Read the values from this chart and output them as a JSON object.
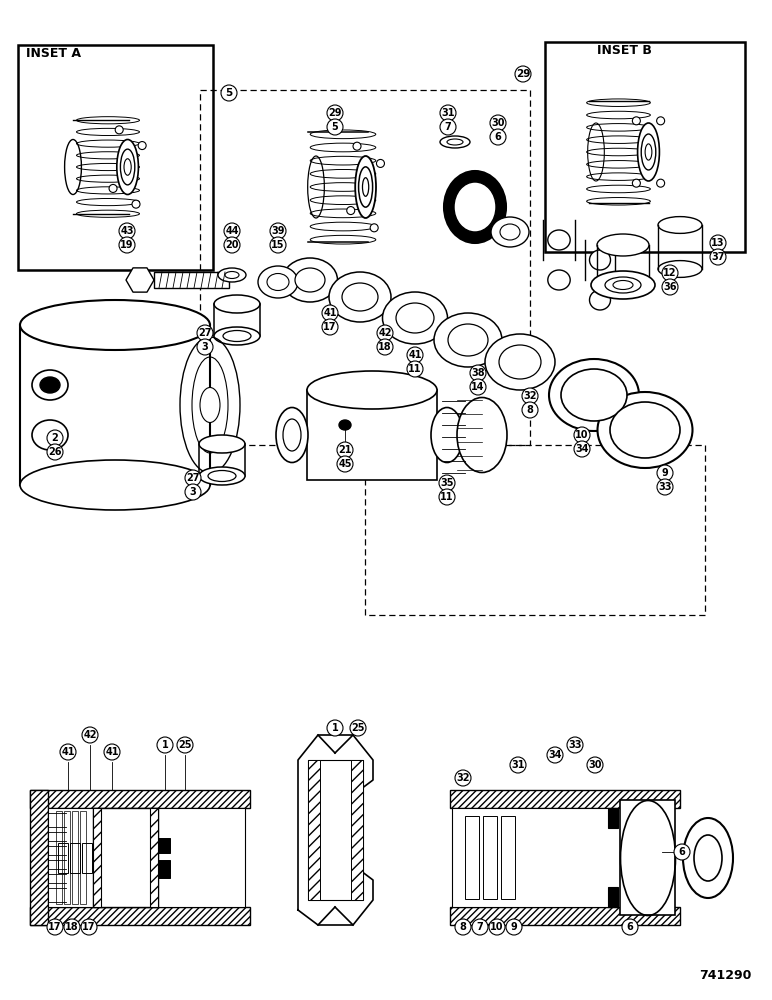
{
  "background_color": "#ffffff",
  "part_number": "741290",
  "inset_a_label": "INSET A",
  "inset_b_label": "INSET B",
  "line_color": "#000000",
  "hatch_color": "#000000"
}
